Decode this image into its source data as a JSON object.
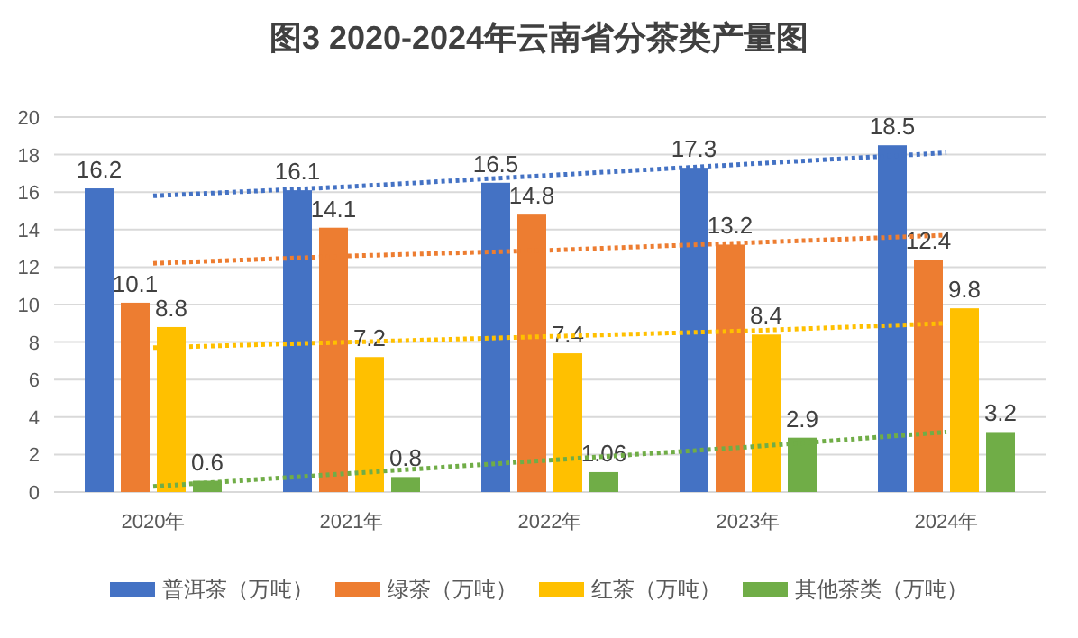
{
  "chart_data": {
    "type": "bar",
    "title": "图3 2020-2024年云南省分茶类产量图",
    "categories": [
      "2020年",
      "2021年",
      "2022年",
      "2023年",
      "2024年"
    ],
    "series": [
      {
        "name": "普洱茶（万吨）",
        "color": "#4472c4",
        "values": [
          16.2,
          16.1,
          16.5,
          17.3,
          18.5
        ],
        "value_labels": [
          "16.2",
          "16.1",
          "16.5",
          "17.3",
          "18.5"
        ]
      },
      {
        "name": "绿茶（万吨）",
        "color": "#ed7d31",
        "values": [
          10.1,
          14.1,
          14.8,
          13.2,
          12.4
        ],
        "value_labels": [
          "10.1",
          "14.1",
          "14.8",
          "13.2",
          "12.4"
        ]
      },
      {
        "name": "红茶（万吨）",
        "color": "#ffc000",
        "values": [
          8.8,
          7.2,
          7.4,
          8.4,
          9.8
        ],
        "value_labels": [
          "8.8",
          "7.2",
          "7.4",
          "8.4",
          "9.8"
        ]
      },
      {
        "name": "其他茶类（万吨）",
        "color": "#70ad47",
        "values": [
          0.6,
          0.8,
          1.06,
          2.9,
          3.2
        ],
        "value_labels": [
          "0.6",
          "0.8",
          "1.06",
          "2.9",
          "3.2"
        ]
      },
      {
        "type": "line",
        "color": "#4472c4",
        "line_style": "dotted",
        "values": [
          15.8,
          16.3,
          16.9,
          17.5,
          18.1
        ]
      },
      {
        "type": "line",
        "color": "#ed7d31",
        "line_style": "dotted",
        "values": [
          12.2,
          12.6,
          12.9,
          13.3,
          13.7
        ]
      },
      {
        "type": "line",
        "color": "#ffc000",
        "line_style": "dotted",
        "values": [
          7.7,
          8.0,
          8.3,
          8.6,
          9.0
        ]
      },
      {
        "type": "line",
        "color": "#70ad47",
        "line_style": "dotted",
        "values": [
          0.3,
          1.0,
          1.7,
          2.4,
          3.2
        ]
      }
    ],
    "ylim": [
      0,
      20
    ],
    "yticks": [
      0,
      2,
      4,
      6,
      8,
      10,
      12,
      14,
      16,
      18,
      20
    ],
    "grid": "y",
    "legend": "bottom"
  }
}
